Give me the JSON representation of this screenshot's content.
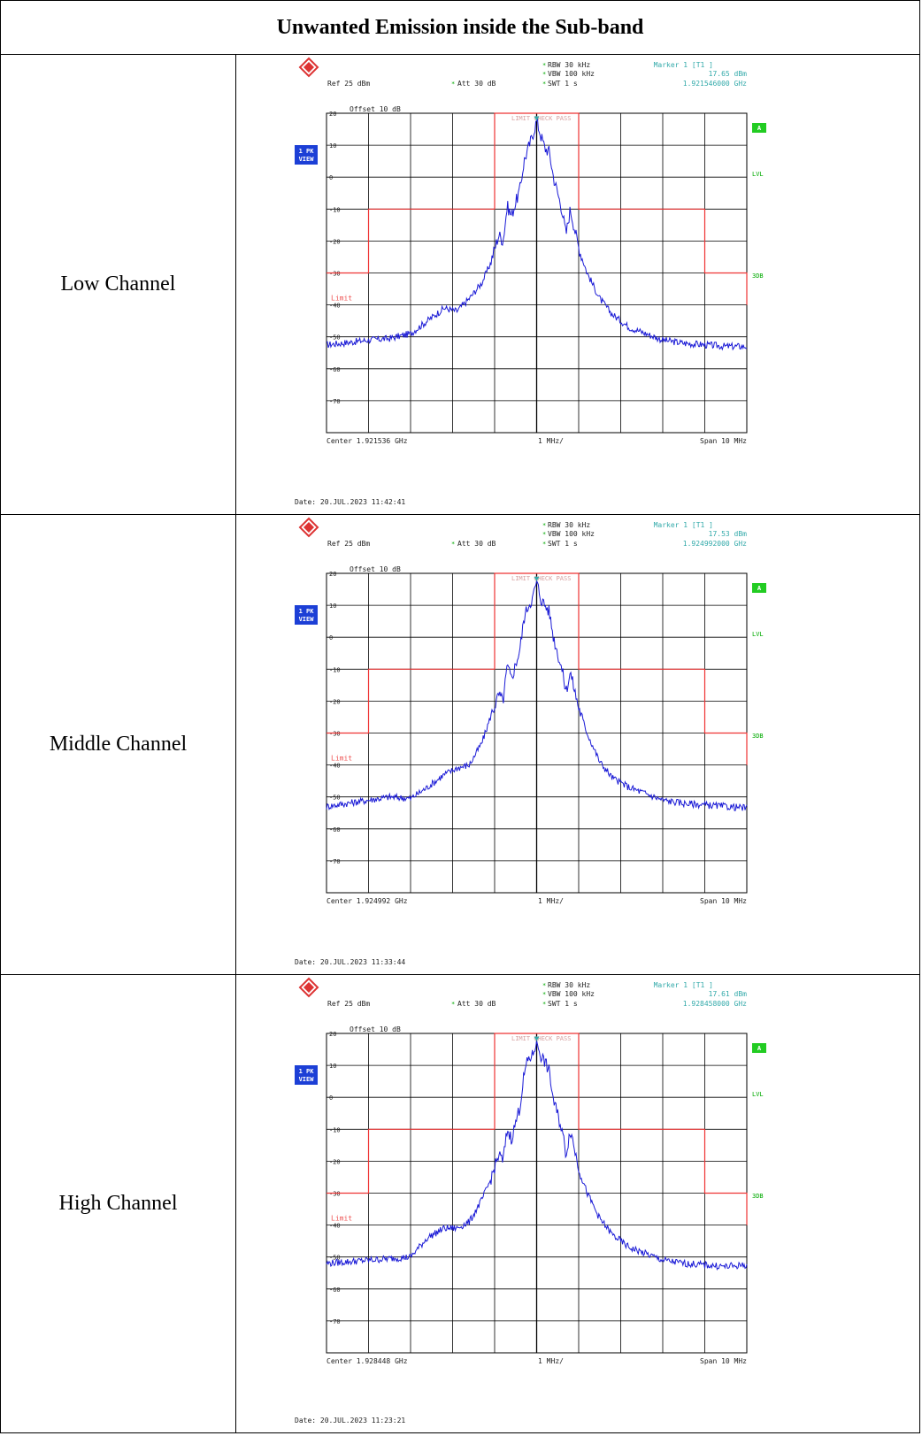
{
  "title": "Unwanted Emission inside the Sub-band",
  "chart_data": [
    {
      "type": "line",
      "row_label": "Low Channel",
      "rbw": "RBW  30 kHz",
      "vbw": "VBW  100 kHz",
      "swt": "SWT  1 s",
      "ref": "Ref   25 dBm",
      "att": "Att   30 dB",
      "offset": "Offset   10 dB",
      "marker_title": "Marker 1 [T1 ]",
      "marker_level": "17.65 dBm",
      "marker_freq": "1.921546000 GHz",
      "center": "Center  1.921536 GHz",
      "per_div": "1 MHz/",
      "span": "Span  10 MHz",
      "date": "Date: 20.JUL.2023  11:42:41",
      "trace_box": "1 PK\nVIEW",
      "limit_check": "LIMIT CHECK   PASS",
      "limit_label": "Limit",
      "side_labels": [
        "A",
        "LVL",
        "3DB"
      ],
      "y_ticks": [
        20,
        10,
        0,
        -10,
        -20,
        -30,
        -40,
        -50,
        -60,
        -70
      ],
      "ylim": [
        -80,
        20
      ],
      "xlim": [
        -5,
        5
      ],
      "limit_line": [
        [
          -5,
          -30
        ],
        [
          -4,
          -30
        ],
        [
          -4,
          -10
        ],
        [
          -1,
          -10
        ],
        [
          -1,
          20
        ],
        [
          1,
          20
        ],
        [
          1,
          -10
        ],
        [
          4,
          -10
        ],
        [
          4,
          -30
        ],
        [
          5,
          -30
        ],
        [
          5,
          -40
        ]
      ],
      "trace": [
        [
          -5,
          -52.5
        ],
        [
          -4.5,
          -51.8
        ],
        [
          -4,
          -51
        ],
        [
          -3.5,
          -50.5
        ],
        [
          -3,
          -49
        ],
        [
          -2.6,
          -45
        ],
        [
          -2.2,
          -41
        ],
        [
          -1.9,
          -42
        ],
        [
          -1.6,
          -38
        ],
        [
          -1.3,
          -33
        ],
        [
          -1.1,
          -27
        ],
        [
          -0.9,
          -18
        ],
        [
          -0.8,
          -20
        ],
        [
          -0.7,
          -9
        ],
        [
          -0.6,
          -12
        ],
        [
          -0.4,
          -4
        ],
        [
          -0.3,
          5
        ],
        [
          -0.2,
          9
        ],
        [
          -0.1,
          13
        ],
        [
          0,
          17.65
        ],
        [
          0.1,
          13
        ],
        [
          0.2,
          9
        ],
        [
          0.3,
          8
        ],
        [
          0.4,
          0
        ],
        [
          0.6,
          -10
        ],
        [
          0.7,
          -18
        ],
        [
          0.8,
          -10
        ],
        [
          1,
          -22
        ],
        [
          1.2,
          -30
        ],
        [
          1.5,
          -38
        ],
        [
          1.8,
          -43
        ],
        [
          2.2,
          -47
        ],
        [
          2.6,
          -49
        ],
        [
          3,
          -51
        ],
        [
          3.5,
          -52
        ],
        [
          4,
          -52.5
        ],
        [
          4.5,
          -53
        ],
        [
          5,
          -53
        ]
      ]
    },
    {
      "type": "line",
      "row_label": "Middle Channel",
      "rbw": "RBW  30 kHz",
      "vbw": "VBW  100 kHz",
      "swt": "SWT  1 s",
      "ref": "Ref   25 dBm",
      "att": "Att   30 dB",
      "offset": "Offset   10 dB",
      "marker_title": "Marker 1 [T1 ]",
      "marker_level": "17.53 dBm",
      "marker_freq": "1.924992000 GHz",
      "center": "Center  1.924992 GHz",
      "per_div": "1 MHz/",
      "span": "Span  10 MHz",
      "date": "Date: 20.JUL.2023  11:33:44",
      "trace_box": "1 PK\nVIEW",
      "limit_check": "LIMIT CHECK   PASS",
      "limit_label": "Limit",
      "side_labels": [
        "A",
        "LVL",
        "3DB"
      ],
      "y_ticks": [
        20,
        10,
        0,
        -10,
        -20,
        -30,
        -40,
        -50,
        -60,
        -70
      ],
      "ylim": [
        -80,
        20
      ],
      "xlim": [
        -5,
        5
      ],
      "limit_line": [
        [
          -5,
          -30
        ],
        [
          -4,
          -30
        ],
        [
          -4,
          -10
        ],
        [
          -1,
          -10
        ],
        [
          -1,
          20
        ],
        [
          1,
          20
        ],
        [
          1,
          -10
        ],
        [
          4,
          -10
        ],
        [
          4,
          -30
        ],
        [
          5,
          -30
        ],
        [
          5,
          -40
        ]
      ],
      "trace": [
        [
          -5,
          -53
        ],
        [
          -4.5,
          -52
        ],
        [
          -4,
          -51
        ],
        [
          -3.5,
          -50
        ],
        [
          -3,
          -50.5
        ],
        [
          -2.6,
          -47
        ],
        [
          -2.2,
          -43
        ],
        [
          -1.9,
          -41
        ],
        [
          -1.6,
          -40
        ],
        [
          -1.3,
          -33
        ],
        [
          -1.1,
          -25
        ],
        [
          -0.9,
          -18
        ],
        [
          -0.8,
          -20
        ],
        [
          -0.7,
          -9
        ],
        [
          -0.6,
          -13
        ],
        [
          -0.4,
          -4
        ],
        [
          -0.3,
          6
        ],
        [
          -0.2,
          10
        ],
        [
          -0.1,
          12
        ],
        [
          0,
          17.53
        ],
        [
          0.1,
          12
        ],
        [
          0.2,
          10
        ],
        [
          0.3,
          8
        ],
        [
          0.4,
          0
        ],
        [
          0.6,
          -10
        ],
        [
          0.7,
          -17
        ],
        [
          0.8,
          -11
        ],
        [
          1,
          -22
        ],
        [
          1.2,
          -30
        ],
        [
          1.5,
          -39
        ],
        [
          1.8,
          -44
        ],
        [
          2.2,
          -47
        ],
        [
          2.6,
          -49
        ],
        [
          3,
          -51
        ],
        [
          3.5,
          -52
        ],
        [
          4,
          -52.5
        ],
        [
          4.5,
          -53
        ],
        [
          5,
          -53.5
        ]
      ]
    },
    {
      "type": "line",
      "row_label": "High Channel",
      "rbw": "RBW  30 kHz",
      "vbw": "VBW  100 kHz",
      "swt": "SWT  1 s",
      "ref": "Ref   25 dBm",
      "att": "Att   30 dB",
      "offset": "Offset   10 dB",
      "marker_title": "Marker 1 [T1 ]",
      "marker_level": "17.61 dBm",
      "marker_freq": "1.928458000 GHz",
      "center": "Center  1.928448 GHz",
      "per_div": "1 MHz/",
      "span": "Span  10 MHz",
      "date": "Date: 20.JUL.2023  11:23:21",
      "trace_box": "1 PK\nVIEW",
      "limit_check": "LIMIT CHECK   PASS",
      "limit_label": "Limit",
      "side_labels": [
        "A",
        "LVL",
        "3DB"
      ],
      "y_ticks": [
        20,
        10,
        0,
        -10,
        -20,
        -30,
        -40,
        -50,
        -60,
        -70
      ],
      "ylim": [
        -80,
        20
      ],
      "xlim": [
        -5,
        5
      ],
      "limit_line": [
        [
          -5,
          -30
        ],
        [
          -4,
          -30
        ],
        [
          -4,
          -10
        ],
        [
          -1,
          -10
        ],
        [
          -1,
          20
        ],
        [
          1,
          20
        ],
        [
          1,
          -10
        ],
        [
          4,
          -10
        ],
        [
          4,
          -30
        ],
        [
          5,
          -30
        ],
        [
          5,
          -40
        ]
      ],
      "trace": [
        [
          -5,
          -52
        ],
        [
          -4.5,
          -51.5
        ],
        [
          -4,
          -51
        ],
        [
          -3.5,
          -50.5
        ],
        [
          -3,
          -50
        ],
        [
          -2.6,
          -44
        ],
        [
          -2.2,
          -41
        ],
        [
          -1.9,
          -41
        ],
        [
          -1.6,
          -39
        ],
        [
          -1.3,
          -32
        ],
        [
          -1.1,
          -26
        ],
        [
          -0.9,
          -18
        ],
        [
          -0.8,
          -20
        ],
        [
          -0.7,
          -10
        ],
        [
          -0.6,
          -13
        ],
        [
          -0.4,
          -3
        ],
        [
          -0.3,
          7
        ],
        [
          -0.2,
          12
        ],
        [
          -0.1,
          13
        ],
        [
          0,
          17.61
        ],
        [
          0.1,
          13
        ],
        [
          0.2,
          11
        ],
        [
          0.3,
          8
        ],
        [
          0.4,
          -1
        ],
        [
          0.6,
          -10
        ],
        [
          0.7,
          -18
        ],
        [
          0.8,
          -10
        ],
        [
          1,
          -22
        ],
        [
          1.2,
          -30
        ],
        [
          1.5,
          -38
        ],
        [
          1.8,
          -43
        ],
        [
          2.2,
          -47
        ],
        [
          2.6,
          -49
        ],
        [
          3,
          -51
        ],
        [
          3.5,
          -52
        ],
        [
          4,
          -52.5
        ],
        [
          4.5,
          -53
        ],
        [
          5,
          -52.5
        ]
      ]
    }
  ]
}
